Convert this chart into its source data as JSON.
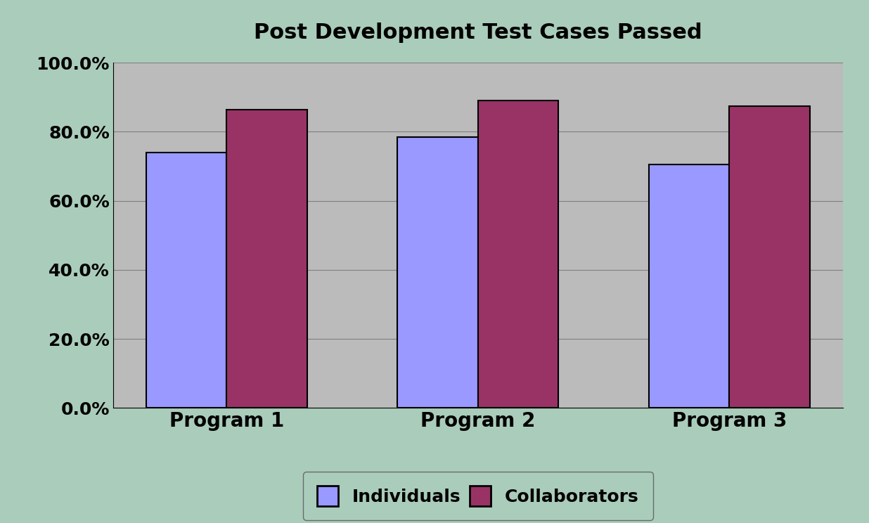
{
  "title": "Post Development Test Cases Passed",
  "categories": [
    "Program 1",
    "Program 2",
    "Program 3"
  ],
  "individuals": [
    0.74,
    0.785,
    0.705
  ],
  "collaborators": [
    0.865,
    0.89,
    0.875
  ],
  "individuals_color": "#9999FF",
  "collaborators_color": "#993366",
  "bar_edge_color": "#000000",
  "background_color": "#AACCBB",
  "plot_bg_color": "#BBBBBB",
  "ylim": [
    0.0,
    1.0
  ],
  "yticks": [
    0.0,
    0.2,
    0.4,
    0.6,
    0.8,
    1.0
  ],
  "ytick_labels": [
    "0.0%",
    "20.0%",
    "40.0%",
    "60.0%",
    "80.0%",
    "100.0%"
  ],
  "legend_labels": [
    "Individuals",
    "Collaborators"
  ],
  "title_fontsize": 22,
  "tick_fontsize": 18,
  "xlabel_fontsize": 20,
  "legend_fontsize": 18,
  "bar_width": 0.32
}
